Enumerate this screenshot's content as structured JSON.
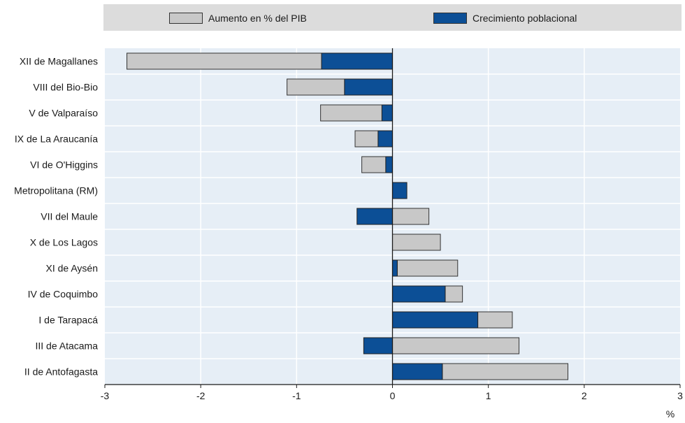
{
  "legend": {
    "gdp_label": "Aumento en % del PIB",
    "pop_label": "Crecimiento poblacional"
  },
  "colors": {
    "plot_bg": "#e6eef6",
    "gdp": "#c8c8c8",
    "pop": "#0c4f96",
    "grid": "#ffffff",
    "legend_bg": "#dcdcdc"
  },
  "chart_data": {
    "type": "bar",
    "orientation": "horizontal",
    "stacked": true,
    "categories": [
      "XII de Magallanes",
      "VIII del Bio-Bio",
      "V de Valparaíso",
      "IX de La Araucanía",
      "VI de O'Higgins",
      "Metropolitana (RM)",
      "VII del Maule",
      "X de Los Lagos",
      "XI de Aysén",
      "IV de Coquimbo",
      "I de Tarapacá",
      "III de Atacama",
      "II de Antofagasta"
    ],
    "series": [
      {
        "name": "Crecimiento poblacional",
        "values": [
          -0.74,
          -0.5,
          -0.11,
          -0.15,
          -0.07,
          0.15,
          -0.37,
          0.0,
          0.05,
          0.55,
          0.89,
          -0.3,
          0.52
        ]
      },
      {
        "name": "Aumento en % del PIB",
        "values": [
          -2.03,
          -0.6,
          -0.64,
          -0.24,
          -0.25,
          0.0,
          0.38,
          0.5,
          0.63,
          0.18,
          0.36,
          1.32,
          1.31
        ]
      }
    ],
    "xlim": [
      -3,
      3
    ],
    "xticks": [
      -3,
      -2,
      -1,
      0,
      1,
      2,
      3
    ],
    "xlabel": "%",
    "grid": true,
    "legend_position": "top"
  }
}
